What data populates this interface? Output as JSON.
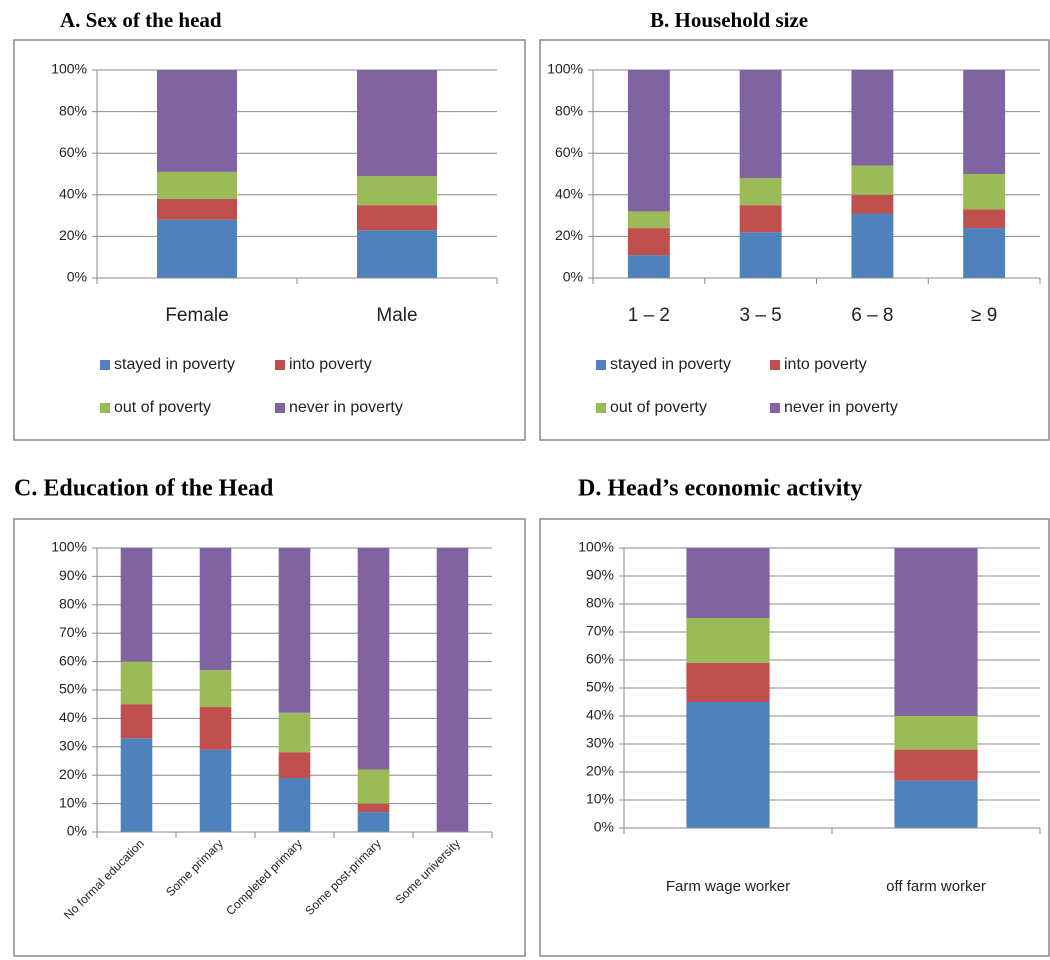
{
  "chart_data": [
    {
      "type": "bar",
      "stacked": true,
      "title": "A. Sex of the head",
      "categories": [
        "Female",
        "Male"
      ],
      "series": [
        {
          "name": "stayed in poverty",
          "color": "#4f81bd",
          "values": [
            28,
            23
          ]
        },
        {
          "name": "into poverty",
          "color": "#c0504d",
          "values": [
            10,
            12
          ]
        },
        {
          "name": "out of poverty",
          "color": "#9bbb59",
          "values": [
            13,
            14
          ]
        },
        {
          "name": "never in poverty",
          "color": "#8064a2",
          "values": [
            49,
            51
          ]
        }
      ],
      "ylim": [
        0,
        100
      ],
      "yticks": [
        {
          "value": 0,
          "label": "0%"
        },
        {
          "value": 20,
          "label": "20%"
        },
        {
          "value": 40,
          "label": "40%"
        },
        {
          "value": 60,
          "label": "60%"
        },
        {
          "value": 80,
          "label": "80%"
        },
        {
          "value": 100,
          "label": "100%"
        }
      ],
      "grid": true,
      "legend": "bottom"
    },
    {
      "type": "bar",
      "stacked": true,
      "title": "B. Household size",
      "categories": [
        "1 – 2",
        "3 – 5",
        "6 – 8",
        "≥ 9"
      ],
      "series": [
        {
          "name": "stayed in poverty",
          "color": "#4f81bd",
          "values": [
            11,
            22,
            31,
            24
          ]
        },
        {
          "name": "into poverty",
          "color": "#c0504d",
          "values": [
            13,
            13,
            9,
            9
          ]
        },
        {
          "name": "out of poverty",
          "color": "#9bbb59",
          "values": [
            8,
            13,
            14,
            17
          ]
        },
        {
          "name": "never in poverty",
          "color": "#8064a2",
          "values": [
            68,
            52,
            46,
            50
          ]
        }
      ],
      "ylim": [
        0,
        100
      ],
      "yticks": [
        {
          "value": 0,
          "label": "0%"
        },
        {
          "value": 20,
          "label": "20%"
        },
        {
          "value": 40,
          "label": "40%"
        },
        {
          "value": 60,
          "label": "60%"
        },
        {
          "value": 80,
          "label": "80%"
        },
        {
          "value": 100,
          "label": "100%"
        }
      ],
      "grid": true,
      "legend": "bottom"
    },
    {
      "type": "bar",
      "stacked": true,
      "title": "C. Education of the Head",
      "categories": [
        "No formal education",
        "Some primary",
        "Completed primary",
        "Some post-primary",
        "Some university"
      ],
      "series": [
        {
          "color": "#4f81bd",
          "values": [
            33,
            29,
            19,
            7,
            0
          ]
        },
        {
          "color": "#c0504d",
          "values": [
            12,
            15,
            9,
            3,
            0
          ]
        },
        {
          "color": "#9bbb59",
          "values": [
            15,
            13,
            14,
            12,
            0
          ]
        },
        {
          "color": "#8064a2",
          "values": [
            40,
            43,
            58,
            78,
            100
          ]
        }
      ],
      "ylim": [
        0,
        100
      ],
      "yticks": [
        {
          "value": 0,
          "label": "0%"
        },
        {
          "value": 10,
          "label": "10%"
        },
        {
          "value": 20,
          "label": "20%"
        },
        {
          "value": 30,
          "label": "30%"
        },
        {
          "value": 40,
          "label": "40%"
        },
        {
          "value": 50,
          "label": "50%"
        },
        {
          "value": 60,
          "label": "60%"
        },
        {
          "value": 70,
          "label": "70%"
        },
        {
          "value": 80,
          "label": "80%"
        },
        {
          "value": 90,
          "label": "90%"
        },
        {
          "value": 100,
          "label": "100%"
        }
      ],
      "grid": true
    },
    {
      "type": "bar",
      "stacked": true,
      "title": "D. Head’s economic activity",
      "categories": [
        "Farm wage worker",
        "off farm worker"
      ],
      "series": [
        {
          "color": "#4f81bd",
          "values": [
            45,
            17
          ]
        },
        {
          "color": "#c0504d",
          "values": [
            14,
            11
          ]
        },
        {
          "color": "#9bbb59",
          "values": [
            16,
            12
          ]
        },
        {
          "color": "#8064a2",
          "values": [
            25,
            60
          ]
        }
      ],
      "ylim": [
        0,
        100
      ],
      "yticks": [
        {
          "value": 0,
          "label": "0%"
        },
        {
          "value": 10,
          "label": "10%"
        },
        {
          "value": 20,
          "label": "20%"
        },
        {
          "value": 30,
          "label": "30%"
        },
        {
          "value": 40,
          "label": "40%"
        },
        {
          "value": 50,
          "label": "50%"
        },
        {
          "value": 60,
          "label": "60%"
        },
        {
          "value": 70,
          "label": "70%"
        },
        {
          "value": 80,
          "label": "80%"
        },
        {
          "value": 90,
          "label": "90%"
        },
        {
          "value": 100,
          "label": "100%"
        }
      ],
      "grid": true
    }
  ]
}
